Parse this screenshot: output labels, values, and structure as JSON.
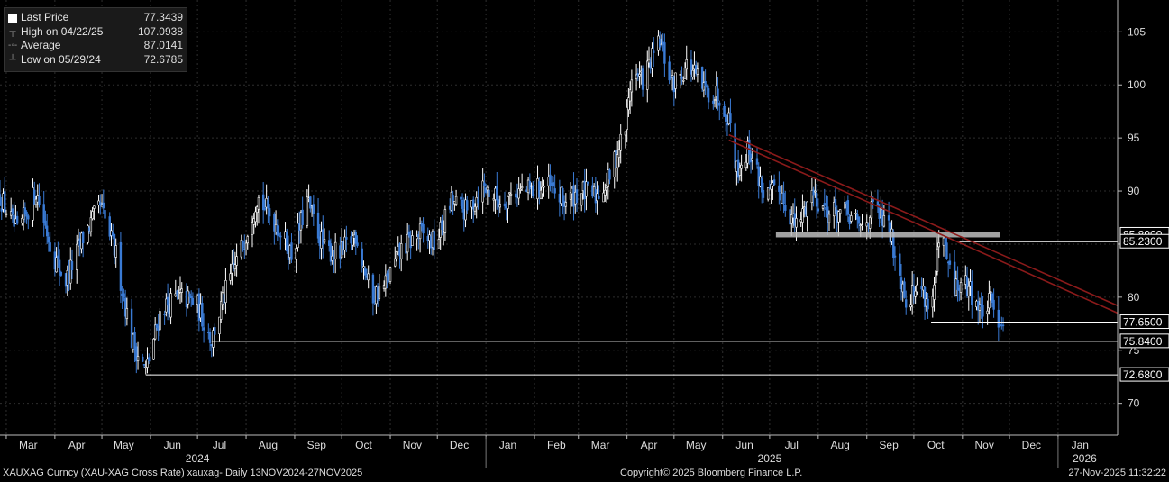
{
  "legend": {
    "items": [
      {
        "label": "Last Price",
        "value": "77.3439",
        "icon": "white-square"
      },
      {
        "label": "High on 04/22/25",
        "value": "107.0938",
        "icon": "high-marker"
      },
      {
        "label": "Average",
        "value": "87.0141",
        "icon": "average-line"
      },
      {
        "label": "Low on 05/29/24",
        "value": "72.6785",
        "icon": "low-marker"
      }
    ]
  },
  "footer": {
    "left": "XAUXAG Curncy (XAU-XAG Cross Rate) xauxag- Daily 13NOV2024-27NOV2025",
    "center": "Copyright© 2025 Bloomberg Finance L.P.",
    "right": "27-Nov-2025 11:32:22"
  },
  "colors": {
    "background": "#000000",
    "candle_up": "#ffffff",
    "candle_down": "#3a7bd5",
    "trendline": "#8b1a1a",
    "level_line": "#ffffff",
    "grid": "#2e2e2e"
  },
  "chart_data": {
    "type": "candlestick",
    "y_axis": {
      "side": "right",
      "ticks": [
        70,
        75,
        80,
        85,
        90,
        95,
        100,
        105
      ],
      "range": [
        67,
        108
      ]
    },
    "x_axis": {
      "months": [
        "Mar",
        "Apr",
        "May",
        "Jun",
        "Jul",
        "Aug",
        "Sep",
        "Oct",
        "Nov",
        "Dec",
        "Jan",
        "Feb",
        "Mar",
        "Apr",
        "May",
        "Jun",
        "Jul",
        "Aug",
        "Sep",
        "Oct",
        "Nov",
        "Dec",
        "Jan"
      ],
      "years": [
        "2024",
        "2025",
        "2026"
      ],
      "range": [
        "2024-02-26",
        "2026-02-08"
      ]
    },
    "grid": true,
    "price_path": [
      [
        "2024-02-26",
        89.5
      ],
      [
        "2024-03-08",
        86.0
      ],
      [
        "2024-03-20",
        90.0
      ],
      [
        "2024-03-31",
        84.0
      ],
      [
        "2024-04-08",
        81.5
      ],
      [
        "2024-04-20",
        86.0
      ],
      [
        "2024-04-30",
        88.5
      ],
      [
        "2024-05-10",
        84.0
      ],
      [
        "2024-05-20",
        76.0
      ],
      [
        "2024-05-29",
        73.0
      ],
      [
        "2024-06-08",
        79.0
      ],
      [
        "2024-06-20",
        80.0
      ],
      [
        "2024-06-30",
        79.5
      ],
      [
        "2024-07-10",
        76.0
      ],
      [
        "2024-07-20",
        81.0
      ],
      [
        "2024-07-30",
        85.0
      ],
      [
        "2024-08-08",
        89.5
      ],
      [
        "2024-08-20",
        87.0
      ],
      [
        "2024-08-30",
        84.0
      ],
      [
        "2024-09-09",
        89.0
      ],
      [
        "2024-09-20",
        84.5
      ],
      [
        "2024-09-30",
        84.0
      ],
      [
        "2024-10-10",
        86.0
      ],
      [
        "2024-10-20",
        80.0
      ],
      [
        "2024-10-28",
        81.0
      ],
      [
        "2024-11-08",
        84.5
      ],
      [
        "2024-11-20",
        86.0
      ],
      [
        "2024-11-30",
        85.0
      ],
      [
        "2024-12-10",
        89.0
      ],
      [
        "2024-12-20",
        88.0
      ],
      [
        "2024-12-30",
        90.5
      ],
      [
        "2025-01-10",
        89.0
      ],
      [
        "2025-01-20",
        90.0
      ],
      [
        "2025-01-30",
        90.0
      ],
      [
        "2025-02-09",
        90.5
      ],
      [
        "2025-02-20",
        89.0
      ],
      [
        "2025-03-02",
        90.0
      ],
      [
        "2025-03-12",
        89.5
      ],
      [
        "2025-03-20",
        91.0
      ],
      [
        "2025-03-31",
        96.0
      ],
      [
        "2025-04-04",
        101.0
      ],
      [
        "2025-04-11",
        100.5
      ],
      [
        "2025-04-22",
        104.0
      ],
      [
        "2025-04-30",
        100.0
      ],
      [
        "2025-05-10",
        102.0
      ],
      [
        "2025-05-20",
        99.5
      ],
      [
        "2025-05-30",
        99.0
      ],
      [
        "2025-06-06",
        96.5
      ],
      [
        "2025-06-10",
        92.0
      ],
      [
        "2025-06-18",
        94.0
      ],
      [
        "2025-06-28",
        89.5
      ],
      [
        "2025-07-08",
        90.0
      ],
      [
        "2025-07-18",
        86.5
      ],
      [
        "2025-07-28",
        90.0
      ],
      [
        "2025-08-07",
        88.0
      ],
      [
        "2025-08-18",
        88.0
      ],
      [
        "2025-08-28",
        86.5
      ],
      [
        "2025-09-06",
        88.5
      ],
      [
        "2025-09-16",
        86.0
      ],
      [
        "2025-09-26",
        80.0
      ],
      [
        "2025-10-06",
        81.0
      ],
      [
        "2025-10-12",
        78.5
      ],
      [
        "2025-10-18",
        86.0
      ],
      [
        "2025-10-26",
        81.0
      ],
      [
        "2025-11-05",
        81.0
      ],
      [
        "2025-11-13",
        78.5
      ],
      [
        "2025-11-19",
        79.5
      ],
      [
        "2025-11-27",
        77.3439
      ]
    ],
    "horizontal_levels": [
      {
        "value": 85.89,
        "label": "85.8900",
        "from": "2025-07-05",
        "to": "2025-10-30",
        "style": "grey-band"
      },
      {
        "value": 85.23,
        "label": "85.2300",
        "from": "2025-10-30",
        "to": "2026-02-08",
        "style": "line"
      },
      {
        "value": 77.65,
        "label": "77.6500",
        "from": "2025-10-12",
        "to": "2026-02-08",
        "style": "line"
      },
      {
        "value": 75.84,
        "label": "75.8400",
        "from": "2024-07-10",
        "to": "2026-02-08",
        "style": "line"
      },
      {
        "value": 72.68,
        "label": "72.6800",
        "from": "2024-05-29",
        "to": "2026-02-08",
        "style": "line"
      }
    ],
    "trendlines": [
      {
        "from": [
          "2025-06-05",
          95.3
        ],
        "to": [
          "2026-02-08",
          79.2
        ]
      },
      {
        "from": [
          "2025-06-05",
          94.8
        ],
        "to": [
          "2026-02-08",
          78.5
        ]
      }
    ]
  }
}
